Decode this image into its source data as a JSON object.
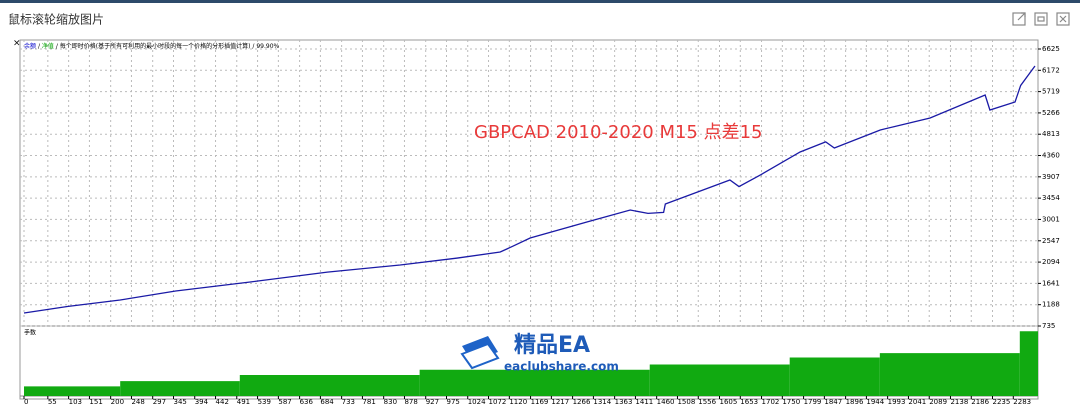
{
  "window": {
    "title": "鼠标滚轮缩放图片"
  },
  "chart_data": [
    {
      "type": "line",
      "legend": [
        {
          "name": "余额",
          "color": "#0000cc"
        },
        {
          "name": "净值",
          "color": "#00a000"
        }
      ],
      "separator": "/",
      "note": "每个即时价格(基于所有可利用的最小时段的每一个价格的分形插值计算)",
      "quality": "99.90%",
      "annotation": "GBPCAD 2010-2020 M15 点差15",
      "series": [
        {
          "name": "余额",
          "color": "#1a1aa6",
          "x": [
            0,
            100,
            222,
            350,
            522,
            700,
            868,
            1000,
            1099,
            1130,
            1168,
            1300,
            1399,
            1440,
            1476,
            1480,
            1629,
            1650,
            1700,
            1791,
            1850,
            1870,
            1976,
            2091,
            2218,
            2229,
            2287,
            2300,
            2333
          ],
          "values": [
            1011,
            1150,
            1288,
            1480,
            1671,
            1880,
            2032,
            2180,
            2308,
            2440,
            2606,
            2950,
            3201,
            3130,
            3150,
            3330,
            3839,
            3700,
            3950,
            4435,
            4650,
            4520,
            4903,
            5158,
            5647,
            5328,
            5498,
            5850,
            6263
          ]
        }
      ],
      "xlim": [
        0,
        2340
      ],
      "ylim": [
        735,
        6625
      ],
      "yticks": [
        735,
        1188,
        1641,
        2094,
        2547,
        3001,
        3454,
        3907,
        4360,
        4813,
        5266,
        5719,
        6172,
        6625
      ],
      "grid": true
    },
    {
      "type": "histogram",
      "title": "手数",
      "color": "#11aa11",
      "bins": [
        0,
        222,
        498,
        913,
        1444,
        1767,
        1975,
        2298,
        2340
      ],
      "values": [
        0.11,
        0.17,
        0.24,
        0.3,
        0.36,
        0.44,
        0.49,
        0.74
      ],
      "xlim": [
        0,
        2340
      ],
      "ylim": [
        0,
        0.8
      ],
      "xticks": [
        0,
        55,
        103,
        151,
        200,
        248,
        297,
        345,
        394,
        442,
        491,
        539,
        587,
        636,
        684,
        733,
        781,
        830,
        878,
        927,
        975,
        1024,
        1072,
        1120,
        1169,
        1217,
        1266,
        1314,
        1363,
        1411,
        1460,
        1508,
        1556,
        1605,
        1653,
        1702,
        1750,
        1799,
        1847,
        1896,
        1944,
        1993,
        2041,
        2089,
        2138,
        2186,
        2235,
        2283
      ]
    }
  ],
  "watermark": {
    "title": "精品EA",
    "subtitle": "eaclubshare.com"
  }
}
